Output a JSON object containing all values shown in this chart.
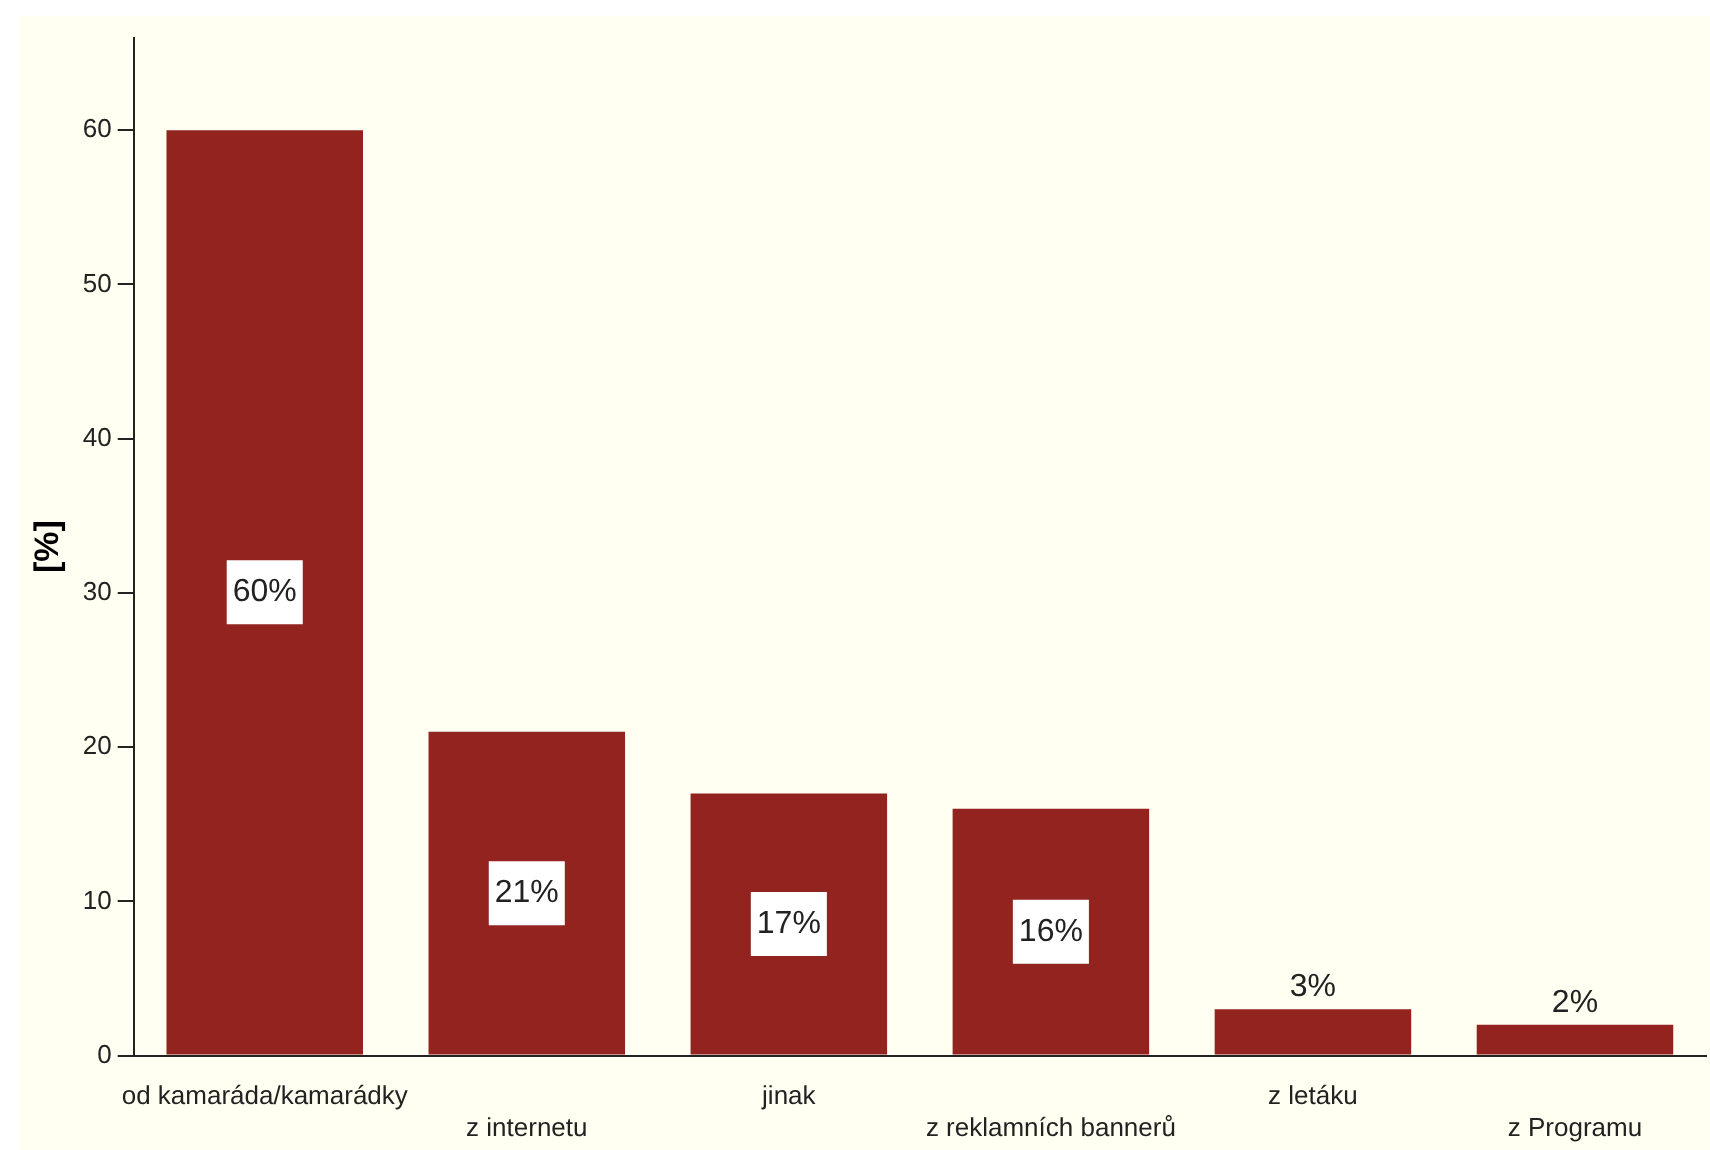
{
  "chart_data": {
    "type": "bar",
    "ylabel": "[%]",
    "categories": [
      "od kamaráda/kamarádky",
      "z internetu",
      "jinak",
      "z reklamních bannerů",
      "z letáku",
      "z Programu"
    ],
    "values": [
      60,
      21,
      17,
      16,
      3,
      2
    ],
    "value_labels": [
      "60%",
      "21%",
      "17%",
      "16%",
      "3%",
      "2%"
    ],
    "color": "#93231f",
    "ylim": [
      0,
      66
    ],
    "yticks": [
      0,
      10,
      20,
      30,
      40,
      50,
      60
    ],
    "grid": false,
    "legend": false
  }
}
